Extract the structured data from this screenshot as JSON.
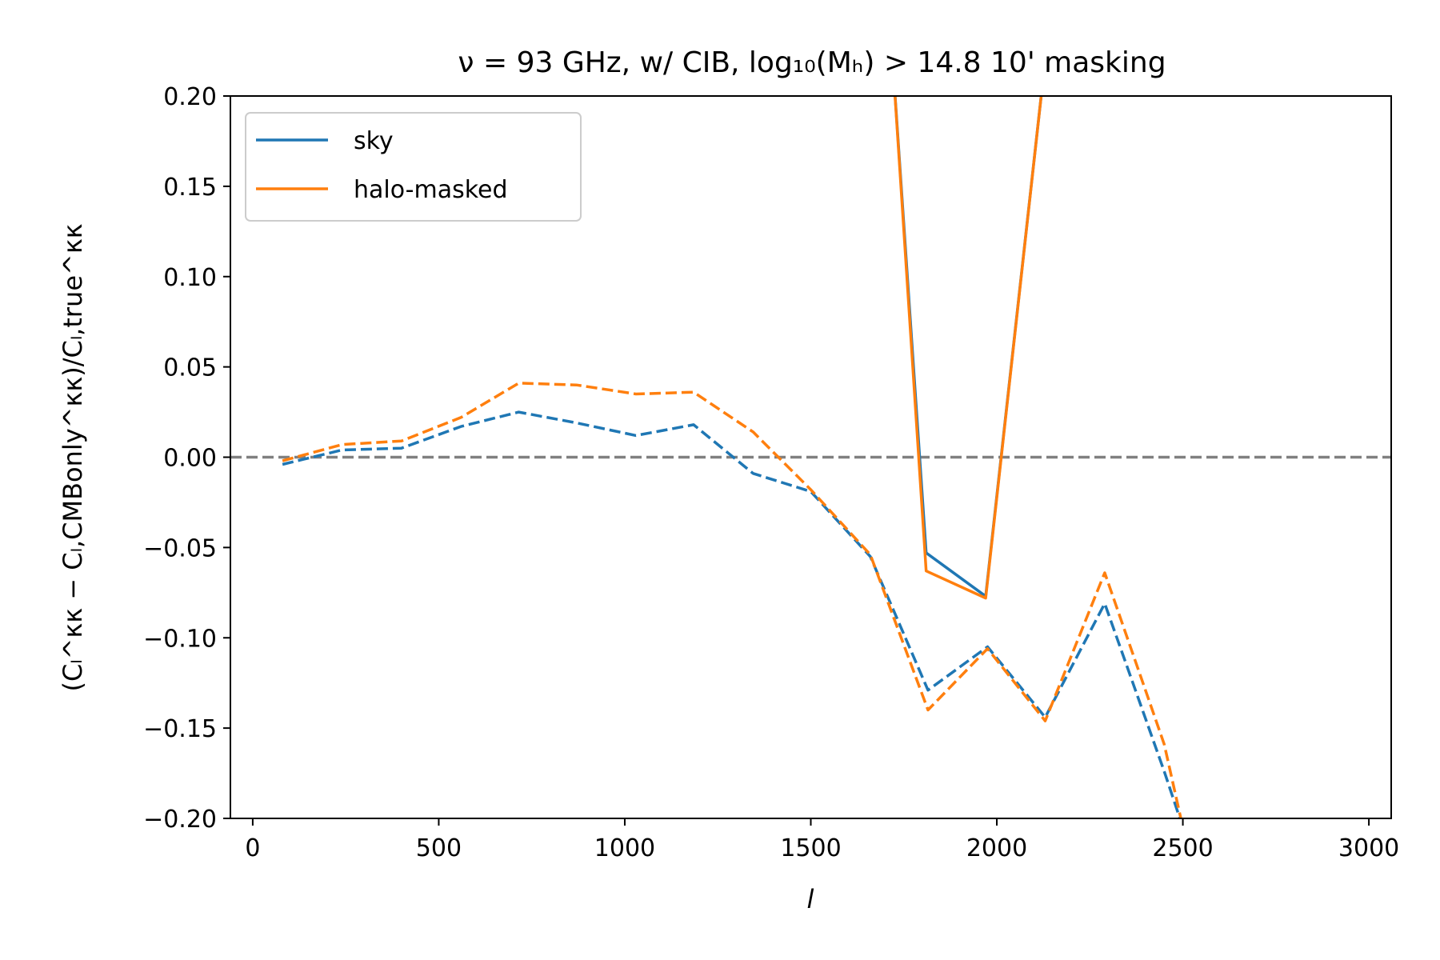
{
  "chart_data": {
    "type": "line",
    "title": "ν = 93 GHz, w/ CIB, log₁₀(Mₕ) > 14.8 10' masking",
    "xlabel": "l",
    "ylabel": "(Cₗ^κκ − Cₗ,CMBonly^κκ)/Cₗ,true^κκ",
    "xlim": [
      -60,
      3060
    ],
    "ylim": [
      -0.2,
      0.2
    ],
    "xticks": [
      0,
      500,
      1000,
      1500,
      2000,
      2500,
      3000
    ],
    "yticks": [
      -0.2,
      -0.15,
      -0.1,
      -0.05,
      0.0,
      0.05,
      0.1,
      0.15,
      0.2
    ],
    "grid": false,
    "legend_position": "upper-left",
    "legend": [
      "sky",
      "halo-masked"
    ],
    "reference_line": {
      "y": 0.0,
      "style": "dashed",
      "color": "#808080"
    },
    "series": [
      {
        "name": "sky",
        "color": "#1f77b4",
        "style": "solid",
        "x": [
          1720,
          1810,
          1970,
          2130
        ],
        "y": [
          0.22,
          -0.053,
          -0.077,
          0.22
        ]
      },
      {
        "name": "halo-masked",
        "color": "#ff7f0e",
        "style": "solid",
        "x": [
          1720,
          1810,
          1970,
          2130
        ],
        "y": [
          0.22,
          -0.063,
          -0.078,
          0.22
        ]
      },
      {
        "name": "",
        "color": "#1f77b4",
        "style": "dashed",
        "x": [
          80,
          240,
          400,
          560,
          715,
          870,
          1030,
          1185,
          1345,
          1500,
          1660,
          1815,
          1975,
          2130,
          2290,
          2450,
          2500
        ],
        "y": [
          -0.004,
          0.004,
          0.005,
          0.017,
          0.025,
          0.019,
          0.012,
          0.018,
          -0.009,
          -0.019,
          -0.055,
          -0.129,
          -0.105,
          -0.144,
          -0.081,
          -0.174,
          -0.205
        ]
      },
      {
        "name": "",
        "color": "#ff7f0e",
        "style": "dashed",
        "x": [
          80,
          240,
          400,
          560,
          715,
          870,
          1030,
          1185,
          1345,
          1500,
          1660,
          1815,
          1975,
          2130,
          2290,
          2450,
          2500
        ],
        "y": [
          -0.002,
          0.007,
          0.009,
          0.022,
          0.041,
          0.04,
          0.035,
          0.036,
          0.014,
          -0.018,
          -0.054,
          -0.14,
          -0.106,
          -0.146,
          -0.064,
          -0.159,
          -0.205
        ]
      }
    ]
  }
}
